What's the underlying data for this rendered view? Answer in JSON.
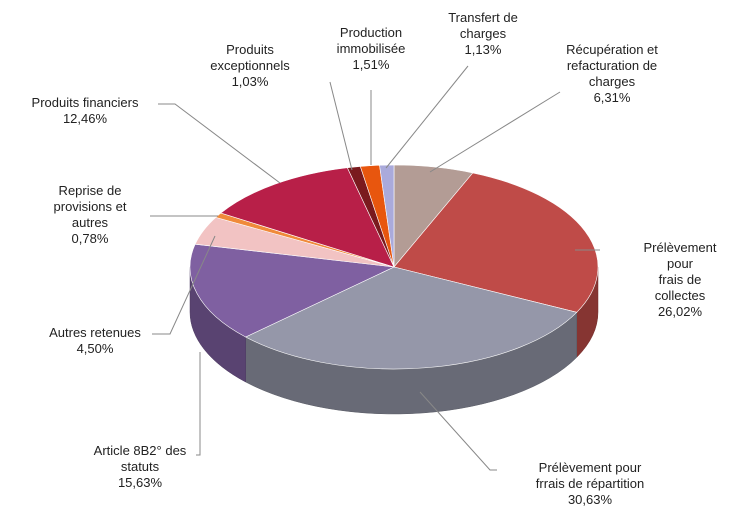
{
  "chart_data": {
    "type": "pie3d",
    "categories": [
      "Récupération et\nrefacturation de\ncharges",
      "Prélèvement  pour\nfrais de collectes",
      "Prélèvement  pour\nfrrais de répartition",
      "Article 8B2° des\nstatuts",
      "Autres retenues",
      "Reprise de\nprovisions et\nautres",
      "Produits financiers",
      "Produits\nexceptionnels",
      "Production\nimmobilisée",
      "Transfert de\ncharges"
    ],
    "values": [
      6.31,
      26.02,
      30.63,
      15.63,
      4.5,
      0.78,
      12.46,
      1.03,
      1.51,
      1.13
    ],
    "value_labels": [
      "6,31%",
      "26,02%",
      "30,63%",
      "15,63%",
      "4,50%",
      "0,78%",
      "12,46%",
      "1,03%",
      "1,51%",
      "1,13%"
    ],
    "colors": [
      "#b39c95",
      "#bf4b48",
      "#9597a9",
      "#7f60a1",
      "#f2c3c3",
      "#f08a3a",
      "#b81f48",
      "#7a1a1e",
      "#e8560e",
      "#aaaadb"
    ]
  }
}
